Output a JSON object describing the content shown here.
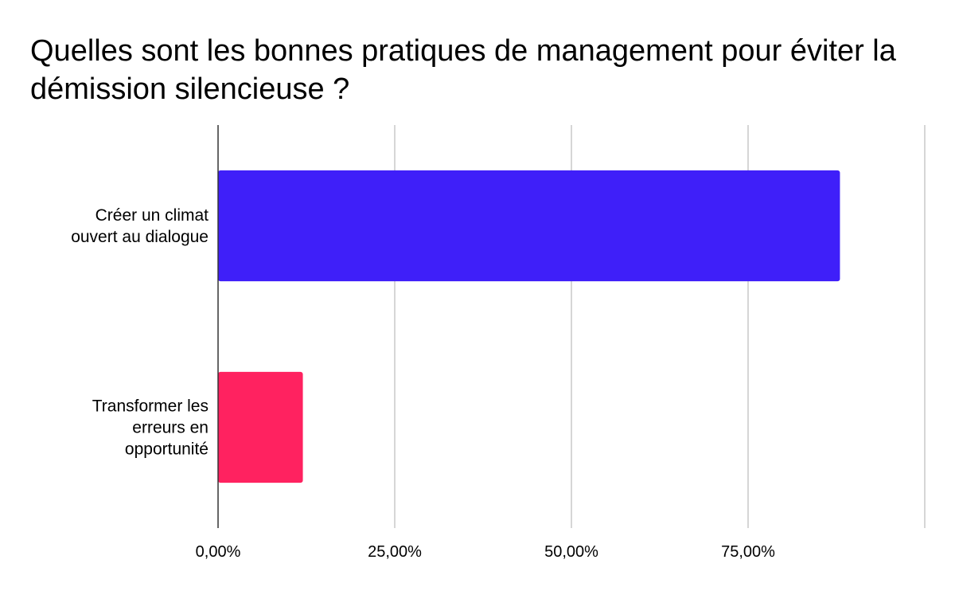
{
  "chart_data": {
    "type": "bar",
    "orientation": "horizontal",
    "title": "Quelles sont les bonnes pratiques de management pour éviter la démission silencieuse ?",
    "xlabel": "",
    "ylabel": "",
    "categories": [
      [
        "Créer un climat",
        "ouvert au dialogue"
      ],
      [
        "Transformer les",
        "erreurs en",
        "opportunité"
      ]
    ],
    "values": [
      88,
      12
    ],
    "colors": [
      "#3f1ff9",
      "#ff2260"
    ],
    "xlim": [
      0,
      100
    ],
    "xticks": [
      0,
      25,
      50,
      75,
      100
    ],
    "xtick_labels": [
      "0,00%",
      "25,00%",
      "50,00%",
      "75,00%",
      ""
    ],
    "grid": true,
    "legend": "none"
  }
}
